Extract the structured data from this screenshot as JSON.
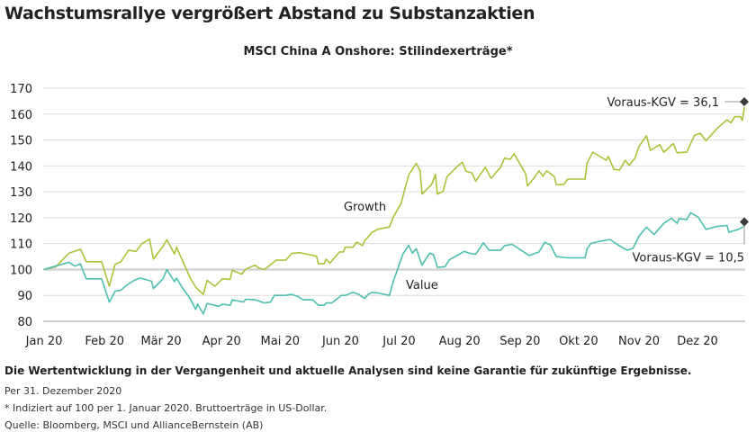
{
  "title": "Wachstumsrallye vergrößert Abstand zu Substanzaktien",
  "footer": {
    "disclaimer": "Die Wertentwicklung in der Vergangenheit und aktuelle Analysen sind keine Garantie für zukünftige Ergebnisse.",
    "as_of": "Per 31. Dezember 2020",
    "note": "* Indiziert auf 100 per 1. Januar 2020. Bruttoerträge in US-Dollar.",
    "source": "Quelle: Bloomberg, MSCI und AllianceBernstein (AB)"
  },
  "chart_data": {
    "type": "line",
    "title": "MSCI China A Onshore: Stilindexerträge*",
    "xlabel": "",
    "ylabel": "",
    "xlim": [
      "2020-01-01",
      "2020-12-31"
    ],
    "ylim": [
      80,
      170
    ],
    "yticks": [
      80,
      90,
      100,
      110,
      120,
      130,
      140,
      150,
      160,
      170
    ],
    "ytick_labels": [
      "80",
      "90",
      "100",
      "110",
      "120",
      "130",
      "140",
      "150",
      "160",
      "170"
    ],
    "xticks": [
      "2020-01-01",
      "2020-02-01",
      "2020-03-01",
      "2020-04-01",
      "2020-05-01",
      "2020-06-01",
      "2020-07-01",
      "2020-08-01",
      "2020-09-01",
      "2020-10-01",
      "2020-11-01",
      "2020-12-01"
    ],
    "xtick_labels": [
      "Jan 20",
      "Feb 20",
      "Mär 20",
      "Apr 20",
      "Mai 20",
      "Jun 20",
      "Jul 20",
      "Aug 20",
      "Sep 20",
      "Okt 20",
      "Nov 20",
      "Dez 20"
    ],
    "grid": true,
    "legend": "none",
    "series": [
      {
        "name": "Growth",
        "color": "#a9c43a",
        "points": [
          [
            "2020-01-01",
            100
          ],
          [
            "2020-01-07",
            101
          ],
          [
            "2020-01-14",
            106.3
          ],
          [
            "2020-01-20",
            107.8
          ],
          [
            "2020-01-23",
            103
          ],
          [
            "2020-01-31",
            103
          ],
          [
            "2020-02-04",
            93.5
          ],
          [
            "2020-02-07",
            102
          ],
          [
            "2020-02-10",
            103
          ],
          [
            "2020-02-14",
            107.4
          ],
          [
            "2020-02-18",
            107
          ],
          [
            "2020-02-21",
            110
          ],
          [
            "2020-02-25",
            111.7
          ],
          [
            "2020-02-27",
            104
          ],
          [
            "2020-03-03",
            109
          ],
          [
            "2020-03-05",
            111.5
          ],
          [
            "2020-03-09",
            106
          ],
          [
            "2020-03-10",
            108.6
          ],
          [
            "2020-03-17",
            97
          ],
          [
            "2020-03-20",
            93.2
          ],
          [
            "2020-03-24",
            90.4
          ],
          [
            "2020-03-26",
            95.8
          ],
          [
            "2020-03-30",
            93.5
          ],
          [
            "2020-04-03",
            96.4
          ],
          [
            "2020-04-07",
            96.2
          ],
          [
            "2020-04-08",
            99.7
          ],
          [
            "2020-04-13",
            98.2
          ],
          [
            "2020-04-15",
            100.1
          ],
          [
            "2020-04-20",
            101.7
          ],
          [
            "2020-04-22",
            100.5
          ],
          [
            "2020-04-25",
            100.1
          ],
          [
            "2020-05-01",
            103.6
          ],
          [
            "2020-05-06",
            103.6
          ],
          [
            "2020-05-09",
            106.2
          ],
          [
            "2020-05-13",
            106.5
          ],
          [
            "2020-05-20",
            105.5
          ],
          [
            "2020-05-22",
            105.1
          ],
          [
            "2020-05-23",
            102.2
          ],
          [
            "2020-05-26",
            102.2
          ],
          [
            "2020-05-27",
            104
          ],
          [
            "2020-05-29",
            102.5
          ],
          [
            "2020-06-03",
            106.8
          ],
          [
            "2020-06-05",
            106.8
          ],
          [
            "2020-06-06",
            108.6
          ],
          [
            "2020-06-10",
            108.6
          ],
          [
            "2020-06-12",
            110.6
          ],
          [
            "2020-06-15",
            109.2
          ],
          [
            "2020-06-16",
            111
          ],
          [
            "2020-06-20",
            114.4
          ],
          [
            "2020-06-23",
            115.5
          ],
          [
            "2020-06-29",
            116.4
          ],
          [
            "2020-07-01",
            120.2
          ],
          [
            "2020-07-05",
            125.4
          ],
          [
            "2020-07-09",
            136.4
          ],
          [
            "2020-07-13",
            141
          ],
          [
            "2020-07-15",
            138.1
          ],
          [
            "2020-07-16",
            129.1
          ],
          [
            "2020-07-21",
            132.9
          ],
          [
            "2020-07-23",
            136.7
          ],
          [
            "2020-07-24",
            129.1
          ],
          [
            "2020-07-27",
            130.2
          ],
          [
            "2020-07-29",
            135.8
          ],
          [
            "2020-08-04",
            140.2
          ],
          [
            "2020-08-06",
            141.4
          ],
          [
            "2020-08-08",
            137.9
          ],
          [
            "2020-08-11",
            137.3
          ],
          [
            "2020-08-13",
            134.1
          ],
          [
            "2020-08-18",
            139.5
          ],
          [
            "2020-08-21",
            135.2
          ],
          [
            "2020-08-26",
            139.5
          ],
          [
            "2020-08-28",
            143
          ],
          [
            "2020-08-31",
            142.5
          ],
          [
            "2020-09-02",
            144.7
          ],
          [
            "2020-09-08",
            137
          ],
          [
            "2020-09-09",
            132.3
          ],
          [
            "2020-09-12",
            134.9
          ],
          [
            "2020-09-15",
            138.1
          ],
          [
            "2020-09-17",
            136
          ],
          [
            "2020-09-19",
            138.1
          ],
          [
            "2020-09-23",
            135.8
          ],
          [
            "2020-09-24",
            132.7
          ],
          [
            "2020-09-28",
            132.9
          ],
          [
            "2020-09-30",
            134.9
          ],
          [
            "2020-10-09",
            134.9
          ],
          [
            "2020-10-10",
            141
          ],
          [
            "2020-10-13",
            145.3
          ],
          [
            "2020-10-20",
            142.2
          ],
          [
            "2020-10-21",
            143.7
          ],
          [
            "2020-10-24",
            138.7
          ],
          [
            "2020-10-27",
            138.4
          ],
          [
            "2020-10-30",
            142.2
          ],
          [
            "2020-11-01",
            140.2
          ],
          [
            "2020-11-04",
            143
          ],
          [
            "2020-11-06",
            147.4
          ],
          [
            "2020-11-10",
            151.7
          ],
          [
            "2020-11-12",
            146
          ],
          [
            "2020-11-17",
            148.2
          ],
          [
            "2020-11-19",
            145.3
          ],
          [
            "2020-11-24",
            148.6
          ],
          [
            "2020-11-26",
            145.1
          ],
          [
            "2020-12-01",
            145.3
          ],
          [
            "2020-12-05",
            151.8
          ],
          [
            "2020-12-08",
            152.6
          ],
          [
            "2020-12-11",
            149.7
          ],
          [
            "2020-12-17",
            154.6
          ],
          [
            "2020-12-22",
            157.8
          ],
          [
            "2020-12-24",
            156.6
          ],
          [
            "2020-12-26",
            159
          ],
          [
            "2020-12-29",
            159
          ],
          [
            "2020-12-30",
            157.6
          ],
          [
            "2020-12-31",
            162.7
          ]
        ]
      },
      {
        "name": "Value",
        "color": "#4dbfae",
        "points": [
          [
            "2020-01-01",
            100
          ],
          [
            "2020-01-07",
            101.3
          ],
          [
            "2020-01-14",
            102.8
          ],
          [
            "2020-01-17",
            101.3
          ],
          [
            "2020-01-20",
            102.2
          ],
          [
            "2020-01-21",
            100
          ],
          [
            "2020-01-23",
            96.4
          ],
          [
            "2020-01-31",
            96.4
          ],
          [
            "2020-02-04",
            87.4
          ],
          [
            "2020-02-07",
            91.6
          ],
          [
            "2020-02-10",
            92
          ],
          [
            "2020-02-13",
            93.9
          ],
          [
            "2020-02-17",
            95.8
          ],
          [
            "2020-02-20",
            96.7
          ],
          [
            "2020-02-26",
            95.5
          ],
          [
            "2020-02-27",
            92.7
          ],
          [
            "2020-03-03",
            96.4
          ],
          [
            "2020-03-05",
            100
          ],
          [
            "2020-03-09",
            95.3
          ],
          [
            "2020-03-10",
            96.7
          ],
          [
            "2020-03-13",
            93
          ],
          [
            "2020-03-17",
            88.9
          ],
          [
            "2020-03-20",
            84.6
          ],
          [
            "2020-03-21",
            86.6
          ],
          [
            "2020-03-24",
            82.8
          ],
          [
            "2020-03-26",
            86.9
          ],
          [
            "2020-04-01",
            85.8
          ],
          [
            "2020-04-03",
            86.6
          ],
          [
            "2020-04-07",
            86.2
          ],
          [
            "2020-04-08",
            88.3
          ],
          [
            "2020-04-14",
            87.4
          ],
          [
            "2020-04-15",
            88.5
          ],
          [
            "2020-04-20",
            88.3
          ],
          [
            "2020-04-25",
            87.1
          ],
          [
            "2020-04-28",
            87.4
          ],
          [
            "2020-04-30",
            90
          ],
          [
            "2020-05-06",
            90
          ],
          [
            "2020-05-09",
            90.4
          ],
          [
            "2020-05-12",
            89.7
          ],
          [
            "2020-05-15",
            88.3
          ],
          [
            "2020-05-20",
            88.3
          ],
          [
            "2020-05-23",
            86.2
          ],
          [
            "2020-05-26",
            86.2
          ],
          [
            "2020-05-27",
            87.1
          ],
          [
            "2020-05-30",
            87.1
          ],
          [
            "2020-06-04",
            90
          ],
          [
            "2020-06-06",
            90
          ],
          [
            "2020-06-10",
            91.2
          ],
          [
            "2020-06-13",
            90.4
          ],
          [
            "2020-06-16",
            88.9
          ],
          [
            "2020-06-18",
            90.4
          ],
          [
            "2020-06-20",
            91.2
          ],
          [
            "2020-06-23",
            90.9
          ],
          [
            "2020-06-29",
            90
          ],
          [
            "2020-07-01",
            95.3
          ],
          [
            "2020-07-06",
            105.9
          ],
          [
            "2020-07-09",
            109.4
          ],
          [
            "2020-07-11",
            106.3
          ],
          [
            "2020-07-13",
            108
          ],
          [
            "2020-07-16",
            101.7
          ],
          [
            "2020-07-20",
            106.3
          ],
          [
            "2020-07-22",
            105.7
          ],
          [
            "2020-07-24",
            100.8
          ],
          [
            "2020-07-28",
            101.1
          ],
          [
            "2020-07-30",
            103.6
          ],
          [
            "2020-08-07",
            107
          ],
          [
            "2020-08-10",
            106.2
          ],
          [
            "2020-08-13",
            105.9
          ],
          [
            "2020-08-17",
            110.3
          ],
          [
            "2020-08-20",
            107.4
          ],
          [
            "2020-08-26",
            107.4
          ],
          [
            "2020-08-28",
            109.2
          ],
          [
            "2020-09-01",
            109.7
          ],
          [
            "2020-09-07",
            106.8
          ],
          [
            "2020-09-10",
            105.4
          ],
          [
            "2020-09-15",
            106.8
          ],
          [
            "2020-09-18",
            110.5
          ],
          [
            "2020-09-21",
            109.4
          ],
          [
            "2020-09-24",
            105
          ],
          [
            "2020-09-30",
            104.5
          ],
          [
            "2020-10-09",
            104.5
          ],
          [
            "2020-10-10",
            107.9
          ],
          [
            "2020-10-12",
            110
          ],
          [
            "2020-10-16",
            110.8
          ],
          [
            "2020-10-22",
            111.6
          ],
          [
            "2020-10-27",
            109.1
          ],
          [
            "2020-10-31",
            107.4
          ],
          [
            "2020-11-03",
            108.2
          ],
          [
            "2020-11-06",
            112.8
          ],
          [
            "2020-11-10",
            116.3
          ],
          [
            "2020-11-14",
            113.5
          ],
          [
            "2020-11-19",
            117.8
          ],
          [
            "2020-11-23",
            119.8
          ],
          [
            "2020-11-26",
            117.8
          ],
          [
            "2020-11-27",
            119.6
          ],
          [
            "2020-12-01",
            119.3
          ],
          [
            "2020-12-03",
            121.9
          ],
          [
            "2020-12-07",
            120.2
          ],
          [
            "2020-12-11",
            115.5
          ],
          [
            "2020-12-17",
            116.7
          ],
          [
            "2020-12-22",
            117
          ],
          [
            "2020-12-23",
            114.4
          ],
          [
            "2020-12-28",
            115.5
          ],
          [
            "2020-12-31",
            116.7
          ]
        ]
      }
    ],
    "annotations": [
      {
        "text": "Growth",
        "series": "Growth"
      },
      {
        "text": "Value",
        "series": "Value"
      },
      {
        "text": "Voraus-KGV = 36,1",
        "series": "Growth",
        "marker_date": "2020-12-31",
        "marker_value": 164.8,
        "marker": "diamond"
      },
      {
        "text": "Voraus-KGV = 10,5",
        "series": "Value",
        "marker_date": "2020-12-31",
        "marker_value": 118.4,
        "marker": "diamond"
      }
    ],
    "colors": {
      "grid": "#dcdcdc",
      "axis": "#999999",
      "marker": "#3a3a3a"
    }
  }
}
